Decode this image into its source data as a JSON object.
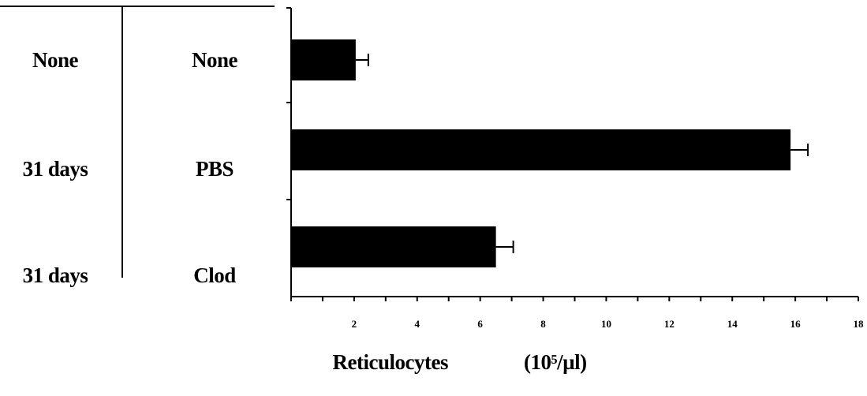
{
  "chart_data": {
    "type": "bar",
    "orientation": "horizontal",
    "columns": [
      "",
      ""
    ],
    "rows": [
      {
        "col1": "None",
        "col2": "None",
        "value": 2.05,
        "error": 0.4
      },
      {
        "col1": "31 days",
        "col2": "PBS",
        "value": 15.85,
        "error": 0.55
      },
      {
        "col1": "31 days",
        "col2": "Clod",
        "value": 6.5,
        "error": 0.55
      }
    ],
    "xlim": [
      0,
      18
    ],
    "xticks": [
      2,
      4,
      6,
      8,
      10,
      12,
      14,
      16,
      18
    ],
    "xlabel": "Reticulocytes",
    "xlabel_unit": "(10⁵/µl)",
    "bar_color": "#000000",
    "grid": false
  }
}
